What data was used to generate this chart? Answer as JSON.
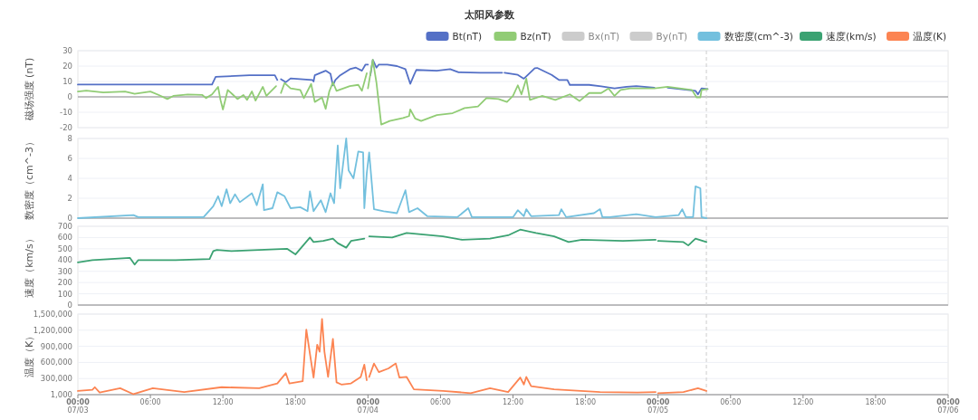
{
  "chart_data": [
    {
      "type": "line",
      "title": "太阳风参数",
      "ylabel": "磁场强度 (nT)",
      "xlim": [
        "--07-03T00:00",
        "--07-06T00:00"
      ],
      "ylim": [
        -20,
        30
      ],
      "yticks": [
        -20,
        -10,
        0,
        10,
        20,
        30
      ],
      "grid": "y",
      "legend": "top right",
      "tick_labels": "y",
      "ref_lines": [
        {
          "axis": "x",
          "value": "--07-05T04:00",
          "color": "#cccccc",
          "line_style": "dashed"
        }
      ],
      "series": [
        {
          "name": "Bt(nT)",
          "color": "#5470c6",
          "x": [
            "--07-03T00:00",
            "--07-03T11:06",
            "--07-03T11:24",
            "--07-03T14:12",
            "--07-03T16:18",
            "--07-03T16:30",
            "--07-03T16:36",
            "--07-03T16:48",
            "--07-03T17:12",
            "--07-03T17:36",
            "--07-03T19:24",
            "--07-03T19:30",
            "--07-03T19:36",
            "--07-03T20:30",
            "--07-03T20:54",
            "--07-03T21:06",
            "--07-03T21:18",
            "--07-03T21:42",
            "--07-03T22:30",
            "--07-03T23:00",
            "--07-03T23:30",
            "--07-03T23:48",
            "--07-04T00:00",
            "--07-04T00:06",
            "--07-04T00:12",
            "--07-04T00:24",
            "--07-04T00:42",
            "--07-04T00:54",
            "--07-04T01:36",
            "--07-04T02:24",
            "--07-04T03:06",
            "--07-04T03:30",
            "--07-04T03:48",
            "--07-04T04:00",
            "--07-04T05:42",
            "--07-04T06:48",
            "--07-04T07:30",
            "--07-04T09:18",
            "--07-04T11:06",
            "--07-04T11:12",
            "--07-04T11:18",
            "--07-04T12:24",
            "--07-04T12:54",
            "--07-04T13:06",
            "--07-04T13:48",
            "--07-04T14:00",
            "--07-04T15:12",
            "--07-04T15:48",
            "--07-04T16:30",
            "--07-04T16:42",
            "--07-04T18:18",
            "--07-04T19:18",
            "--07-04T20:24",
            "--07-04T21:24",
            "--07-04T22:12",
            "--07-04T23:42",
            "--07-05T00:12",
            "--07-05T00:48",
            "--07-05T03:06",
            "--07-05T03:18",
            "--07-05T03:36",
            "--07-05T04:06"
          ],
          "values": [
            8,
            8,
            13,
            14,
            14,
            11,
            null,
            11.5,
            9.5,
            12,
            11,
            10,
            14,
            17,
            15,
            7.5,
            11,
            14,
            18,
            19,
            17,
            21,
            21,
            null,
            14,
            24,
            19,
            21,
            21,
            20,
            18,
            8.5,
            14,
            17.5,
            17,
            18,
            16,
            15.7,
            15.7,
            null,
            15.7,
            14.3,
            11.8,
            13.3,
            18.6,
            18.8,
            14.3,
            11,
            11,
            7.8,
            7.8,
            6.9,
            5.5,
            6.5,
            7,
            5.9,
            null,
            5.9,
            3.9,
            1.6,
            5.5,
            5.1
          ]
        },
        {
          "name": "Bz(nT)",
          "color": "#91cc75",
          "x": [
            "--07-03T00:00",
            "--07-03T00:42",
            "--07-03T02:06",
            "--07-03T03:54",
            "--07-03T04:42",
            "--07-03T06:00",
            "--07-03T06:42",
            "--07-03T07:24",
            "--07-03T07:54",
            "--07-03T09:06",
            "--07-03T10:18",
            "--07-03T10:36",
            "--07-03T11:06",
            "--07-03T11:36",
            "--07-03T11:48",
            "--07-03T12:00",
            "--07-03T12:24",
            "--07-03T12:48",
            "--07-03T13:12",
            "--07-03T13:42",
            "--07-03T14:00",
            "--07-03T14:24",
            "--07-03T14:42",
            "--07-03T15:18",
            "--07-03T15:36",
            "--07-03T16:24",
            "--07-03T16:36",
            "--07-03T16:48",
            "--07-03T17:06",
            "--07-03T17:36",
            "--07-03T18:24",
            "--07-03T18:42",
            "--07-03T19:18",
            "--07-03T19:36",
            "--07-03T20:12",
            "--07-03T20:30",
            "--07-03T20:48",
            "--07-03T21:06",
            "--07-03T21:24",
            "--07-03T22:30",
            "--07-03T23:12",
            "--07-03T23:30",
            "--07-03T23:54",
            "--07-03T23:57",
            "--07-04T00:00",
            "--07-04T00:24",
            "--07-04T00:42",
            "--07-04T01:06",
            "--07-04T01:48",
            "--07-04T02:54",
            "--07-04T03:24",
            "--07-04T03:30",
            "--07-04T03:54",
            "--07-04T04:24",
            "--07-04T05:42",
            "--07-04T07:00",
            "--07-04T08:00",
            "--07-04T09:06",
            "--07-04T09:48",
            "--07-04T10:48",
            "--07-04T11:30",
            "--07-04T12:00",
            "--07-04T12:24",
            "--07-04T12:42",
            "--07-04T13:06",
            "--07-04T13:24",
            "--07-04T14:24",
            "--07-04T15:30",
            "--07-04T16:42",
            "--07-04T17:30",
            "--07-04T18:18",
            "--07-04T19:18",
            "--07-04T19:54",
            "--07-04T20:24",
            "--07-04T20:54",
            "--07-04T21:42",
            "--07-04T23:42",
            "--07-05T00:48",
            "--07-05T02:48",
            "--07-05T03:12",
            "--07-05T03:30",
            "--07-05T03:36",
            "--07-05T04:06"
          ],
          "values": [
            3.5,
            4.1,
            2.9,
            3.5,
            2,
            3.5,
            1.2,
            -1.4,
            0.6,
            1.6,
            1.2,
            -0.8,
            1.6,
            6.5,
            -2,
            -8.2,
            4.5,
            1.6,
            -1.4,
            1.2,
            -2,
            3.5,
            -2.4,
            6.5,
            0.6,
            7,
            null,
            2.5,
            9,
            5.5,
            4.5,
            -0.8,
            8.4,
            -3.3,
            -0.4,
            -7.8,
            3.5,
            9.4,
            3.9,
            7,
            7.8,
            3.9,
            15.3,
            null,
            5.5,
            24.1,
            9.4,
            -18,
            -15.7,
            -13.7,
            -12.5,
            -8.2,
            -14,
            -15.7,
            -11.8,
            -10.6,
            -7.3,
            -6.3,
            -0.8,
            -1.4,
            -3.3,
            0.6,
            7.5,
            1.6,
            11.8,
            -2,
            0.6,
            -2,
            1.6,
            -2.7,
            2.5,
            2.5,
            5.5,
            0.6,
            4.5,
            5.5,
            5.5,
            6.5,
            4.5,
            -0.4,
            -0.4,
            4.5,
            5.1
          ]
        },
        {
          "name": "Bx(nT)",
          "color": "#cccccc"
        },
        {
          "name": "By(nT)",
          "color": "#cccccc"
        }
      ]
    },
    {
      "type": "line",
      "ylabel": "数密度（cm^-3）",
      "xlim": [
        "--07-03T00:00",
        "--07-06T00:00"
      ],
      "ylim": [
        0,
        8
      ],
      "yticks": [
        0,
        2,
        4,
        6,
        8
      ],
      "grid": "y",
      "tick_labels": "y",
      "ref_lines": [
        {
          "axis": "x",
          "value": "--07-05T04:00",
          "color": "#cccccc",
          "line_style": "dashed"
        }
      ],
      "series": [
        {
          "name": "数密度(cm^-3)",
          "color": "#73c0de",
          "x": [
            "--07-03T00:00",
            "--07-03T04:36",
            "--07-03T05:00",
            "--07-03T10:24",
            "--07-03T11:12",
            "--07-03T11:36",
            "--07-03T11:54",
            "--07-03T12:18",
            "--07-03T12:36",
            "--07-03T13:00",
            "--07-03T13:24",
            "--07-03T14:24",
            "--07-03T14:48",
            "--07-03T15:18",
            "--07-03T15:24",
            "--07-03T16:06",
            "--07-03T16:30",
            "--07-03T17:06",
            "--07-03T17:36",
            "--07-03T18:24",
            "--07-03T19:00",
            "--07-03T19:12",
            "--07-03T19:30",
            "--07-03T20:06",
            "--07-03T20:30",
            "--07-03T20:54",
            "--07-03T21:12",
            "--07-03T21:30",
            "--07-03T21:42",
            "--07-03T21:54",
            "--07-03T22:12",
            "--07-03T22:24",
            "--07-03T22:48",
            "--07-03T23:12",
            "--07-03T23:36",
            "--07-03T23:42",
            "--07-03T23:54",
            "--07-04T00:06",
            "--07-04T00:30",
            "--07-04T01:18",
            "--07-04T02:24",
            "--07-04T03:06",
            "--07-04T03:24",
            "--07-04T04:06",
            "--07-04T04:54",
            "--07-04T07:24",
            "--07-04T08:18",
            "--07-04T08:36",
            "--07-04T12:00",
            "--07-04T12:24",
            "--07-04T12:54",
            "--07-04T13:06",
            "--07-04T13:30",
            "--07-04T15:48",
            "--07-04T16:00",
            "--07-04T16:24",
            "--07-04T18:42",
            "--07-04T19:12",
            "--07-04T19:24",
            "--07-04T20:00",
            "--07-04T22:12",
            "--07-04T23:48",
            "--07-05T01:42",
            "--07-05T02:00",
            "--07-05T02:18",
            "--07-05T02:54",
            "--07-05T03:06",
            "--07-05T03:30",
            "--07-05T03:36",
            "--07-05T04:00"
          ],
          "values": [
            0,
            0.3,
            0.1,
            0.1,
            1.2,
            2.2,
            1.2,
            2.9,
            1.5,
            2.4,
            1.6,
            2.5,
            1.3,
            3.4,
            0.8,
            1.0,
            2.6,
            2.2,
            1.0,
            1.1,
            0.7,
            2.7,
            0.7,
            1.8,
            0.6,
            2.5,
            1.5,
            7.3,
            3.0,
            5.0,
            8.0,
            4.8,
            4.0,
            6.7,
            6.6,
            1.0,
            4.5,
            6.6,
            0.9,
            0.7,
            0.5,
            2.8,
            0.6,
            1.0,
            0.2,
            0.1,
            1.0,
            0.1,
            0.1,
            0.8,
            0.2,
            0.9,
            0.2,
            0.3,
            0.9,
            0.1,
            0.5,
            0.9,
            0.1,
            0.1,
            0.4,
            0.1,
            0.3,
            0.9,
            0.1,
            0.1,
            3.2,
            3.0,
            0.1,
            0
          ]
        }
      ]
    },
    {
      "type": "line",
      "ylabel": "速度（km/s）",
      "xlim": [
        "--07-03T00:00",
        "--07-06T00:00"
      ],
      "ylim": [
        0,
        700
      ],
      "yticks": [
        0,
        100,
        200,
        300,
        400,
        500,
        600,
        700
      ],
      "grid": "y",
      "tick_labels": "y",
      "ref_lines": [
        {
          "axis": "x",
          "value": "--07-05T04:00",
          "color": "#cccccc",
          "line_style": "dashed"
        }
      ],
      "series": [
        {
          "name": "速度(km/s)",
          "color": "#3ba272",
          "x": [
            "--07-03T00:00",
            "--07-03T01:12",
            "--07-03T04:18",
            "--07-03T04:42",
            "--07-03T05:00",
            "--07-03T08:06",
            "--07-03T10:54",
            "--07-03T11:12",
            "--07-03T11:30",
            "--07-03T12:42",
            "--07-03T15:00",
            "--07-03T17:18",
            "--07-03T18:00",
            "--07-03T18:48",
            "--07-03T19:12",
            "--07-03T19:30",
            "--07-03T20:18",
            "--07-03T21:06",
            "--07-03T21:30",
            "--07-03T22:12",
            "--07-03T22:36",
            "--07-03T23:42",
            "--07-03T23:54",
            "--07-04T00:06",
            "--07-04T02:00",
            "--07-04T03:12",
            "--07-04T06:12",
            "--07-04T07:48",
            "--07-04T10:06",
            "--07-04T11:36",
            "--07-04T12:36",
            "--07-04T13:54",
            "--07-04T15:24",
            "--07-04T16:36",
            "--07-04T17:42",
            "--07-04T21:06",
            "--07-04T23:48",
            "--07-04T23:54",
            "--07-05T00:00",
            "--07-05T02:06",
            "--07-05T02:30",
            "--07-05T03:06",
            "--07-05T04:00"
          ],
          "values": [
            380,
            400,
            420,
            360,
            400,
            400,
            410,
            480,
            490,
            480,
            490,
            500,
            450,
            550,
            600,
            560,
            570,
            590,
            550,
            510,
            570,
            590,
            null,
            610,
            600,
            640,
            610,
            580,
            590,
            620,
            670,
            640,
            610,
            560,
            580,
            570,
            580,
            null,
            570,
            560,
            530,
            590,
            560
          ]
        }
      ]
    },
    {
      "type": "line",
      "ylabel": "温度（K）",
      "xlim": [
        "--07-03T00:00",
        "--07-06T00:00"
      ],
      "xticks": [
        {
          "value": "--07-03T00:00",
          "label": "00:00\n07/03"
        },
        {
          "value": "--07-03T06:00",
          "label": "06:00"
        },
        {
          "value": "--07-03T12:00",
          "label": "12:00"
        },
        {
          "value": "--07-03T18:00",
          "label": "18:00"
        },
        {
          "value": "--07-04T00:00",
          "label": "00:00\n07/04"
        },
        {
          "value": "--07-04T06:00",
          "label": "06:00"
        },
        {
          "value": "--07-04T12:00",
          "label": "12:00"
        },
        {
          "value": "--07-04T18:00",
          "label": "18:00"
        },
        {
          "value": "--07-05T00:00",
          "label": "00:00\n07/05"
        },
        {
          "value": "--07-05T06:00",
          "label": "06:00"
        },
        {
          "value": "--07-05T12:00",
          "label": "12:00"
        },
        {
          "value": "--07-05T18:00",
          "label": "18:00"
        },
        {
          "value": "--07-06T00:00",
          "label": "00:00\n07/06"
        }
      ],
      "ylim": [
        1000,
        1500000
      ],
      "yticks": [
        {
          "value": 1000,
          "label": "1,000"
        },
        {
          "value": 300000,
          "label": "300,000"
        },
        {
          "value": 600000,
          "label": "600,000"
        },
        {
          "value": 900000,
          "label": "900,000"
        },
        {
          "value": 1200000,
          "label": "1,200,000"
        },
        {
          "value": 1500000,
          "label": "1,500,000"
        }
      ],
      "grid": "y",
      "ref_lines": [
        {
          "axis": "x",
          "value": "--07-05T04:00",
          "color": "#cccccc",
          "line_style": "dashed"
        }
      ],
      "series": [
        {
          "name": "温度(K)",
          "color": "#fc8452",
          "x": [
            "--07-03T00:00",
            "--07-03T01:12",
            "--07-03T01:24",
            "--07-03T01:48",
            "--07-03T03:30",
            "--07-03T04:36",
            "--07-03T06:12",
            "--07-03T08:48",
            "--07-03T11:54",
            "--07-03T15:00",
            "--07-03T16:30",
            "--07-03T17:12",
            "--07-03T17:30",
            "--07-03T18:36",
            "--07-03T18:54",
            "--07-03T19:12",
            "--07-03T19:30",
            "--07-03T19:48",
            "--07-03T20:00",
            "--07-03T20:12",
            "--07-03T20:24",
            "--07-03T20:42",
            "--07-03T21:06",
            "--07-03T21:24",
            "--07-03T21:48",
            "--07-03T22:36",
            "--07-03T23:24",
            "--07-03T23:42",
            "--07-03T23:54",
            "--07-04T00:00",
            "--07-04T00:06",
            "--07-04T00:30",
            "--07-04T00:54",
            "--07-04T01:42",
            "--07-04T02:18",
            "--07-04T02:36",
            "--07-04T03:12",
            "--07-04T03:48",
            "--07-04T06:12",
            "--07-04T08:30",
            "--07-04T10:06",
            "--07-04T11:36",
            "--07-04T12:36",
            "--07-04T12:54",
            "--07-04T13:06",
            "--07-04T13:30",
            "--07-04T15:24",
            "--07-04T19:12",
            "--07-04T22:18",
            "--07-04T23:48",
            "--07-04T23:54",
            "--07-05T00:00",
            "--07-05T02:06",
            "--07-05T03:18",
            "--07-05T04:00"
          ],
          "values": [
            70000,
            90000,
            140000,
            40000,
            120000,
            10000,
            120000,
            50000,
            140000,
            120000,
            210000,
            400000,
            210000,
            250000,
            1210000,
            760000,
            320000,
            930000,
            800000,
            1410000,
            800000,
            330000,
            1040000,
            230000,
            190000,
            210000,
            330000,
            560000,
            270000,
            null,
            330000,
            580000,
            420000,
            490000,
            580000,
            320000,
            330000,
            100000,
            70000,
            30000,
            120000,
            50000,
            320000,
            190000,
            330000,
            160000,
            100000,
            50000,
            40000,
            50000,
            null,
            30000,
            50000,
            120000,
            70000
          ]
        }
      ]
    }
  ]
}
